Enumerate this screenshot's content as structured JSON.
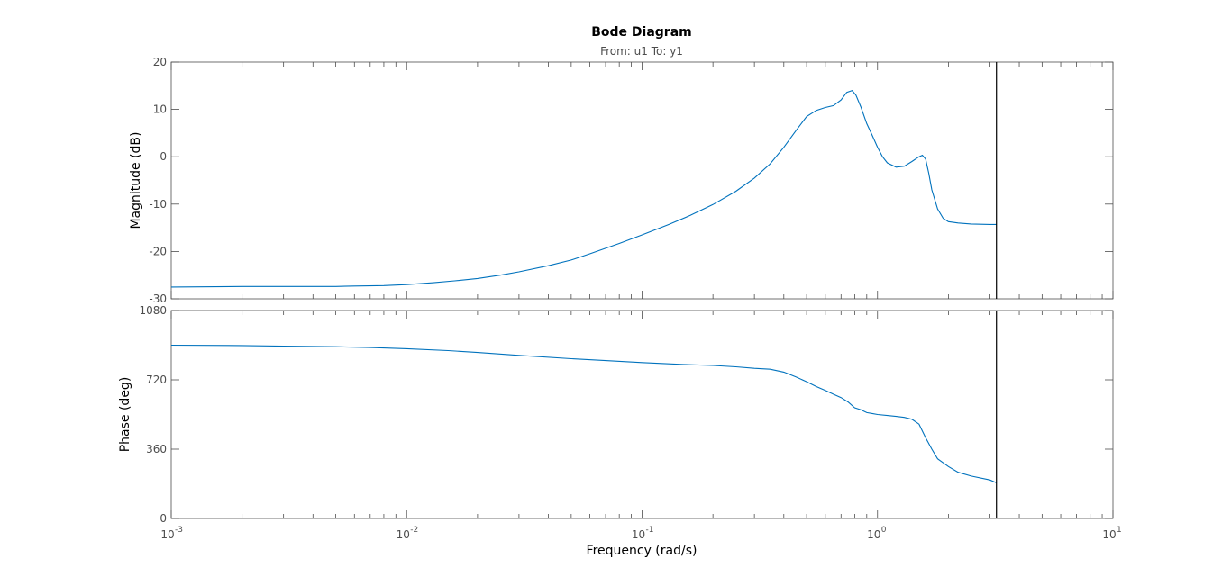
{
  "figure": {
    "title": "Bode Diagram",
    "subtitle": "From: u1  To: y1",
    "xlabel": "Frequency  (rad/s)"
  },
  "chart_data": [
    {
      "type": "line",
      "name": "magnitude",
      "ylabel": "Magnitude (dB)",
      "xscale": "log",
      "xlim": [
        0.001,
        10
      ],
      "ylim": [
        -30,
        20
      ],
      "yticks": [
        -30,
        -20,
        -10,
        0,
        10,
        20
      ],
      "xticks": [
        0.001,
        0.01,
        0.1,
        1,
        10
      ],
      "grid": false,
      "series": [
        {
          "color": "#0072bd",
          "x": [
            0.001,
            0.002,
            0.003,
            0.005,
            0.006,
            0.008,
            0.01,
            0.013,
            0.016,
            0.02,
            0.025,
            0.03,
            0.04,
            0.05,
            0.06,
            0.08,
            0.1,
            0.13,
            0.16,
            0.2,
            0.25,
            0.3,
            0.35,
            0.4,
            0.45,
            0.5,
            0.55,
            0.6,
            0.65,
            0.7,
            0.74,
            0.78,
            0.81,
            0.85,
            0.9,
            0.95,
            1.0,
            1.05,
            1.1,
            1.2,
            1.3,
            1.4,
            1.5,
            1.55,
            1.6,
            1.65,
            1.7,
            1.8,
            1.9,
            2.0,
            2.2,
            2.5,
            3.0,
            3.2
          ],
          "y": [
            -27.5,
            -27.4,
            -27.4,
            -27.4,
            -27.3,
            -27.2,
            -27.0,
            -26.6,
            -26.2,
            -25.7,
            -25.0,
            -24.3,
            -23.0,
            -21.8,
            -20.5,
            -18.3,
            -16.5,
            -14.3,
            -12.4,
            -10.1,
            -7.3,
            -4.5,
            -1.5,
            2.0,
            5.5,
            8.5,
            9.8,
            10.4,
            10.8,
            12.0,
            13.6,
            14.0,
            13.0,
            10.5,
            7.0,
            4.5,
            2.0,
            0.0,
            -1.3,
            -2.2,
            -2.0,
            -1.0,
            0.0,
            0.3,
            -0.5,
            -3.5,
            -7.0,
            -11.0,
            -13.0,
            -13.7,
            -14.0,
            -14.2,
            -14.3,
            -14.3
          ]
        }
      ]
    },
    {
      "type": "line",
      "name": "phase",
      "ylabel": "Phase (deg)",
      "xscale": "log",
      "xlim": [
        0.001,
        10
      ],
      "ylim": [
        0,
        1080
      ],
      "yticks": [
        0,
        360,
        720,
        1080
      ],
      "xticks": [
        0.001,
        0.01,
        0.1,
        1,
        10
      ],
      "grid": false,
      "series": [
        {
          "color": "#0072bd",
          "x": [
            0.001,
            0.002,
            0.003,
            0.005,
            0.007,
            0.01,
            0.015,
            0.02,
            0.03,
            0.05,
            0.07,
            0.1,
            0.15,
            0.2,
            0.25,
            0.3,
            0.35,
            0.4,
            0.45,
            0.5,
            0.55,
            0.6,
            0.65,
            0.7,
            0.75,
            0.8,
            0.85,
            0.9,
            0.95,
            1.0,
            1.1,
            1.2,
            1.3,
            1.4,
            1.5,
            1.6,
            1.7,
            1.8,
            2.0,
            2.2,
            2.5,
            3.0,
            3.2
          ],
          "y": [
            900,
            898,
            895,
            892,
            888,
            882,
            872,
            862,
            847,
            830,
            820,
            810,
            800,
            795,
            788,
            780,
            775,
            760,
            735,
            710,
            685,
            665,
            645,
            628,
            605,
            575,
            565,
            550,
            545,
            540,
            535,
            530,
            525,
            515,
            490,
            420,
            360,
            310,
            270,
            240,
            220,
            200,
            185
          ]
        }
      ]
    }
  ],
  "cursor": {
    "frequency": 3.2,
    "color": "#000000"
  }
}
